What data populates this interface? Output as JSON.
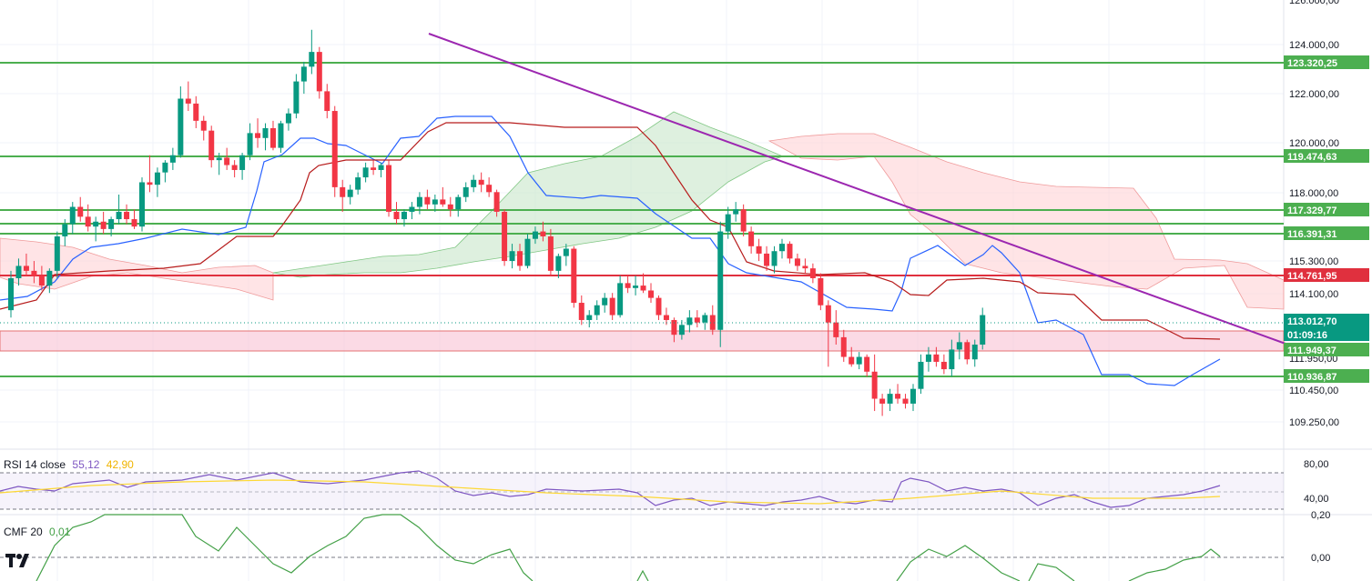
{
  "colors": {
    "up": "#089981",
    "down": "#f23645",
    "support_line": "#4caf50",
    "resistance_line": "#e0303e",
    "trendline": "#9c27b0",
    "tenkan": "#2962ff",
    "kijun": "#b71c1c",
    "cloud_bull": "#c8e6c9",
    "cloud_bear": "#ffcdd2",
    "rsi": "#7e57c2",
    "rsi_ma": "#fdd835",
    "cmf": "#43a047",
    "zone": "#f8bbd0"
  },
  "main_axis": {
    "tick_labels": [
      "124.000,00",
      "122.000,00",
      "120.000,00",
      "118.000,00",
      "115.300,00",
      "114.100,00",
      "110.450,00",
      "109.250,00"
    ],
    "top_cut_label": "126.000,00"
  },
  "price_tags": [
    {
      "label": "123.320,25",
      "kind": "green"
    },
    {
      "label": "119.474,63",
      "kind": "green"
    },
    {
      "label": "117.329,77",
      "kind": "green"
    },
    {
      "label": "116.391,31",
      "kind": "green"
    },
    {
      "label": "114.761,95",
      "kind": "red"
    },
    {
      "label": "113.012,70",
      "kind": "current"
    },
    {
      "label": "01:09:16",
      "kind": "countdown"
    },
    {
      "label": "111.949,37",
      "kind": "green"
    },
    {
      "label": "110.936,87",
      "kind": "green"
    }
  ],
  "partial_label": "111.950,00",
  "rsi_pane": {
    "title": "RSI 14 close",
    "value1": "55,12",
    "value2": "42,90",
    "upper": "80,00",
    "lower": "40,00"
  },
  "cmf_pane": {
    "title": "CMF 20",
    "value": "0,01",
    "top_label": "0,20",
    "zero_label": "0,00"
  },
  "chart_data": {
    "type": "candlestick",
    "series": [
      {
        "name": "BTC candles",
        "values": [
          [
            113.2,
            114.8,
            112.9,
            114.5
          ],
          [
            114.5,
            115.3,
            114.2,
            115.0
          ],
          [
            115.0,
            115.5,
            114.6,
            114.8
          ],
          [
            114.8,
            115.2,
            114.3,
            114.6
          ],
          [
            114.6,
            115.0,
            114.0,
            114.2
          ],
          [
            114.2,
            114.9,
            113.9,
            114.8
          ],
          [
            114.8,
            116.4,
            114.5,
            116.2
          ],
          [
            116.2,
            116.9,
            115.8,
            116.7
          ],
          [
            116.7,
            117.6,
            116.3,
            117.4
          ],
          [
            117.4,
            117.8,
            116.8,
            117.0
          ],
          [
            117.0,
            117.5,
            116.4,
            116.6
          ],
          [
            116.6,
            117.0,
            116.0,
            116.8
          ],
          [
            116.8,
            117.2,
            116.3,
            116.5
          ],
          [
            116.5,
            117.0,
            116.2,
            116.9
          ],
          [
            116.9,
            117.9,
            116.7,
            117.2
          ],
          [
            117.2,
            117.5,
            116.7,
            116.9
          ],
          [
            116.9,
            117.3,
            116.5,
            116.6
          ],
          [
            116.6,
            118.6,
            116.4,
            118.4
          ],
          [
            118.4,
            119.5,
            118.0,
            118.3
          ],
          [
            118.3,
            119.0,
            117.8,
            118.8
          ],
          [
            118.8,
            119.3,
            118.4,
            119.2
          ],
          [
            119.2,
            119.8,
            118.9,
            119.5
          ],
          [
            119.5,
            122.3,
            119.4,
            121.8
          ],
          [
            121.8,
            122.5,
            121.3,
            121.6
          ],
          [
            121.6,
            121.9,
            120.6,
            120.9
          ],
          [
            120.9,
            121.1,
            120.1,
            120.5
          ],
          [
            120.5,
            120.7,
            119.0,
            119.3
          ],
          [
            119.3,
            119.6,
            118.7,
            119.4
          ],
          [
            119.4,
            119.8,
            118.9,
            119.1
          ],
          [
            119.1,
            119.3,
            118.6,
            118.9
          ],
          [
            118.9,
            119.6,
            118.5,
            119.5
          ],
          [
            119.5,
            120.8,
            119.3,
            120.4
          ],
          [
            120.4,
            121.0,
            119.8,
            120.2
          ],
          [
            120.2,
            120.8,
            119.7,
            120.6
          ],
          [
            120.6,
            120.9,
            119.7,
            119.8
          ],
          [
            119.8,
            120.9,
            119.6,
            120.8
          ],
          [
            120.8,
            121.4,
            120.5,
            121.2
          ],
          [
            121.2,
            122.8,
            121.0,
            122.5
          ],
          [
            122.5,
            123.3,
            122.0,
            123.1
          ],
          [
            123.1,
            124.6,
            122.8,
            123.7
          ],
          [
            123.7,
            123.9,
            121.8,
            122.1
          ],
          [
            122.1,
            122.4,
            121.0,
            121.3
          ],
          [
            121.3,
            121.5,
            117.8,
            118.2
          ],
          [
            118.2,
            118.5,
            117.2,
            117.8
          ],
          [
            117.8,
            118.3,
            117.5,
            118.1
          ],
          [
            118.1,
            118.8,
            117.9,
            118.6
          ],
          [
            118.6,
            119.2,
            118.4,
            119.0
          ],
          [
            119.0,
            119.3,
            118.7,
            118.9
          ],
          [
            118.9,
            119.2,
            118.6,
            119.1
          ],
          [
            119.1,
            119.3,
            117.0,
            117.2
          ],
          [
            117.2,
            117.6,
            116.7,
            116.9
          ],
          [
            116.9,
            117.3,
            116.6,
            117.2
          ],
          [
            117.2,
            117.6,
            116.9,
            117.4
          ],
          [
            117.4,
            118.0,
            117.1,
            117.8
          ],
          [
            117.8,
            118.1,
            117.3,
            117.5
          ],
          [
            117.5,
            117.9,
            117.2,
            117.7
          ],
          [
            117.7,
            118.2,
            117.4,
            117.5
          ],
          [
            117.5,
            117.8,
            117.0,
            117.3
          ],
          [
            117.3,
            117.9,
            117.0,
            117.8
          ],
          [
            117.8,
            118.4,
            117.6,
            118.2
          ],
          [
            118.2,
            118.7,
            118.0,
            118.5
          ],
          [
            118.5,
            118.8,
            118.0,
            118.3
          ],
          [
            118.3,
            118.6,
            117.8,
            118.0
          ],
          [
            118.0,
            118.1,
            117.0,
            117.2
          ],
          [
            117.2,
            117.3,
            115.0,
            115.2
          ],
          [
            115.2,
            115.9,
            114.9,
            115.6
          ],
          [
            115.6,
            115.9,
            114.8,
            115.0
          ],
          [
            115.0,
            116.3,
            114.9,
            116.1
          ],
          [
            116.1,
            116.6,
            115.9,
            116.4
          ],
          [
            116.4,
            116.8,
            116.0,
            116.2
          ],
          [
            116.2,
            116.5,
            114.6,
            114.8
          ],
          [
            114.8,
            115.5,
            114.5,
            115.4
          ],
          [
            115.4,
            115.9,
            115.0,
            115.7
          ],
          [
            115.7,
            115.8,
            113.3,
            113.5
          ],
          [
            113.5,
            113.8,
            112.6,
            112.8
          ],
          [
            112.8,
            113.2,
            112.5,
            113.0
          ],
          [
            113.0,
            113.6,
            112.8,
            113.4
          ],
          [
            113.4,
            113.9,
            113.1,
            113.7
          ],
          [
            113.7,
            113.9,
            112.8,
            113.0
          ],
          [
            113.0,
            114.6,
            112.9,
            114.3
          ],
          [
            114.3,
            114.6,
            113.9,
            114.1
          ],
          [
            114.1,
            114.6,
            113.8,
            114.2
          ],
          [
            114.2,
            114.7,
            113.9,
            114.0
          ],
          [
            114.0,
            114.3,
            113.5,
            113.7
          ],
          [
            113.7,
            113.8,
            112.8,
            113.0
          ],
          [
            113.0,
            113.3,
            112.6,
            112.8
          ],
          [
            112.8,
            112.9,
            111.9,
            112.2
          ],
          [
            112.2,
            112.8,
            112.0,
            112.6
          ],
          [
            112.6,
            113.2,
            112.3,
            112.9
          ],
          [
            112.9,
            113.2,
            112.5,
            112.7
          ],
          [
            112.7,
            113.1,
            112.4,
            113.0
          ],
          [
            113.0,
            113.4,
            112.2,
            112.4
          ],
          [
            112.4,
            116.8,
            111.7,
            116.4
          ],
          [
            116.4,
            117.4,
            116.1,
            117.1
          ],
          [
            117.1,
            117.6,
            116.8,
            117.3
          ],
          [
            117.3,
            117.5,
            116.2,
            116.4
          ],
          [
            116.4,
            116.6,
            115.5,
            115.8
          ],
          [
            115.8,
            116.1,
            115.2,
            115.5
          ],
          [
            115.5,
            115.8,
            114.8,
            115.0
          ],
          [
            115.0,
            115.8,
            114.7,
            115.6
          ],
          [
            115.6,
            116.1,
            115.3,
            115.9
          ],
          [
            115.9,
            116.0,
            115.1,
            115.3
          ],
          [
            115.3,
            115.5,
            114.8,
            115.0
          ],
          [
            115.0,
            115.3,
            114.7,
            114.9
          ],
          [
            114.9,
            115.1,
            114.3,
            114.5
          ],
          [
            114.5,
            114.7,
            113.2,
            113.4
          ],
          [
            113.4,
            113.6,
            110.9,
            112.7
          ],
          [
            112.7,
            113.2,
            111.8,
            112.1
          ],
          [
            112.1,
            112.4,
            111.1,
            111.3
          ],
          [
            111.3,
            111.7,
            110.9,
            111.0
          ],
          [
            111.0,
            111.5,
            110.8,
            111.3
          ],
          [
            111.3,
            111.4,
            110.5,
            110.7
          ],
          [
            110.7,
            111.4,
            109.1,
            109.6
          ],
          [
            109.6,
            109.8,
            108.9,
            109.4
          ],
          [
            109.4,
            110.0,
            109.1,
            109.8
          ],
          [
            109.8,
            110.2,
            109.4,
            109.6
          ],
          [
            109.6,
            109.8,
            109.2,
            109.4
          ],
          [
            109.4,
            110.2,
            109.1,
            110.0
          ],
          [
            110.0,
            111.4,
            109.8,
            111.1
          ],
          [
            111.1,
            111.7,
            110.7,
            111.4
          ],
          [
            111.4,
            111.7,
            110.9,
            111.1
          ],
          [
            111.1,
            111.4,
            110.6,
            110.8
          ],
          [
            110.8,
            112.0,
            110.5,
            111.6
          ],
          [
            111.6,
            112.3,
            111.2,
            111.9
          ],
          [
            111.9,
            112.0,
            111.0,
            111.2
          ],
          [
            111.2,
            112.0,
            110.9,
            111.8
          ],
          [
            111.8,
            113.3,
            111.6,
            113.0
          ]
        ]
      }
    ],
    "horizontal_levels": [
      123320.25,
      119474.63,
      117329.77,
      116391.31,
      114761.95,
      110936.87
    ],
    "zone": [
      111949.37,
      112400.0
    ],
    "last_price": 113012.7,
    "rsi_y_range": [
      30,
      85
    ],
    "cmf_y_range": [
      -0.15,
      0.22
    ]
  }
}
